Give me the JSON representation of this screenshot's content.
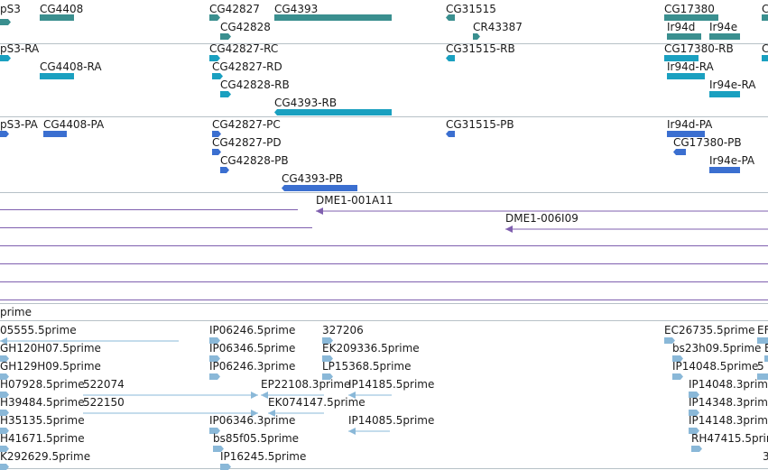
{
  "colors": {
    "gene": "#3a8f8f",
    "mrna_ra": "#1aa0c0",
    "mrna_pa": "#3b6fd0",
    "clone": "#7f5faf",
    "est": "#8ab8d8",
    "border": "#b7c1c7"
  },
  "tracks": [
    {
      "id": "genes",
      "features": [
        {
          "label": "pS3",
          "arrow": "right"
        },
        {
          "label": "CG4408",
          "arrow": "none"
        },
        {
          "label": "CG42827",
          "arrow": "right"
        },
        {
          "label": "CG4393",
          "arrow": "none"
        },
        {
          "label": "CG42828",
          "arrow": "right"
        },
        {
          "label": "CG31515",
          "arrow": "left"
        },
        {
          "label": "CR43387",
          "arrow": "right"
        },
        {
          "label": "CG17380",
          "arrow": "none"
        },
        {
          "label": "Ir94d",
          "arrow": "none"
        },
        {
          "label": "Ir94e",
          "arrow": "none"
        },
        {
          "label": "C",
          "arrow": "none"
        }
      ]
    },
    {
      "id": "transcripts-ra",
      "features": [
        {
          "label": "pS3-RA",
          "arrow": "right"
        },
        {
          "label": "CG4408-RA",
          "arrow": "none"
        },
        {
          "label": "CG42827-RC",
          "arrow": "right"
        },
        {
          "label": "CG42827-RD",
          "arrow": "right"
        },
        {
          "label": "CG42828-RB",
          "arrow": "right"
        },
        {
          "label": "CG4393-RB",
          "arrow": "left"
        },
        {
          "label": "CG31515-RB",
          "arrow": "left"
        },
        {
          "label": "CG17380-RB",
          "arrow": "none"
        },
        {
          "label": "Ir94d-RA",
          "arrow": "none"
        },
        {
          "label": "Ir94e-RA",
          "arrow": "none"
        },
        {
          "label": "C",
          "arrow": "none"
        }
      ]
    },
    {
      "id": "proteins-pa",
      "features": [
        {
          "label": "pS3-PA",
          "arrow": "right"
        },
        {
          "label": "CG4408-PA",
          "arrow": "none"
        },
        {
          "label": "CG42827-PC",
          "arrow": "right"
        },
        {
          "label": "CG42827-PD",
          "arrow": "right"
        },
        {
          "label": "CG42828-PB",
          "arrow": "right"
        },
        {
          "label": "CG4393-PB",
          "arrow": "left"
        },
        {
          "label": "CG31515-PB",
          "arrow": "left"
        },
        {
          "label": "Ir94d-PA",
          "arrow": "none"
        },
        {
          "label": "CG17380-PB",
          "arrow": "left"
        },
        {
          "label": "Ir94e-PA",
          "arrow": "none"
        }
      ]
    },
    {
      "id": "clones",
      "features": [
        {
          "label": "DME1-001A11",
          "arrow": "left"
        },
        {
          "label": "DME1-006I09",
          "arrow": "left"
        }
      ]
    },
    {
      "id": "est-header",
      "features": [
        {
          "label": "prime",
          "arrow": "none"
        }
      ]
    },
    {
      "id": "ests",
      "features": [
        {
          "label": "05555.5prime",
          "arrow": "left"
        },
        {
          "label": "GH120H07.5prime",
          "arrow": "right"
        },
        {
          "label": "GH129H09.5prime",
          "arrow": "right"
        },
        {
          "label": "H07928.5prime",
          "arrow": "right"
        },
        {
          "label": "522074",
          "arrow": "right"
        },
        {
          "label": "H39484.5prime",
          "arrow": "right"
        },
        {
          "label": "522150",
          "arrow": "right"
        },
        {
          "label": "H35135.5prime",
          "arrow": "right"
        },
        {
          "label": "H41671.5prime",
          "arrow": "right"
        },
        {
          "label": "K292629.5prime",
          "arrow": "right"
        },
        {
          "label": "IP06246.5prime",
          "arrow": "right"
        },
        {
          "label": "IP06346.5prime",
          "arrow": "right"
        },
        {
          "label": "IP06246.3prime",
          "arrow": "right"
        },
        {
          "label": "EP22108.3prime",
          "arrow": "left"
        },
        {
          "label": "EK074147.5prime",
          "arrow": "left"
        },
        {
          "label": "IP06346.3prime",
          "arrow": "right"
        },
        {
          "label": "bs85f05.5prime",
          "arrow": "right"
        },
        {
          "label": "IP16245.5prime",
          "arrow": "right"
        },
        {
          "label": "327206",
          "arrow": "right"
        },
        {
          "label": "EK209336.5prime",
          "arrow": "right"
        },
        {
          "label": "LP15368.5prime",
          "arrow": "right"
        },
        {
          "label": "IP14185.5prime",
          "arrow": "left"
        },
        {
          "label": "IP14085.5prime",
          "arrow": "left"
        },
        {
          "label": "EC26735.5prime",
          "arrow": "right"
        },
        {
          "label": "EF",
          "arrow": "none"
        },
        {
          "label": "bs23h09.5prime",
          "arrow": "right"
        },
        {
          "label": "E",
          "arrow": "none"
        },
        {
          "label": "IP14048.5prime",
          "arrow": "right"
        },
        {
          "label": "5",
          "arrow": "none"
        },
        {
          "label": "IP14048.3prime",
          "arrow": "right"
        },
        {
          "label": "IP14348.3prime",
          "arrow": "right"
        },
        {
          "label": "IP14148.3prime",
          "arrow": "right"
        },
        {
          "label": "RH47415.5prime",
          "arrow": "right"
        },
        {
          "label": "3",
          "arrow": "none"
        }
      ]
    }
  ]
}
